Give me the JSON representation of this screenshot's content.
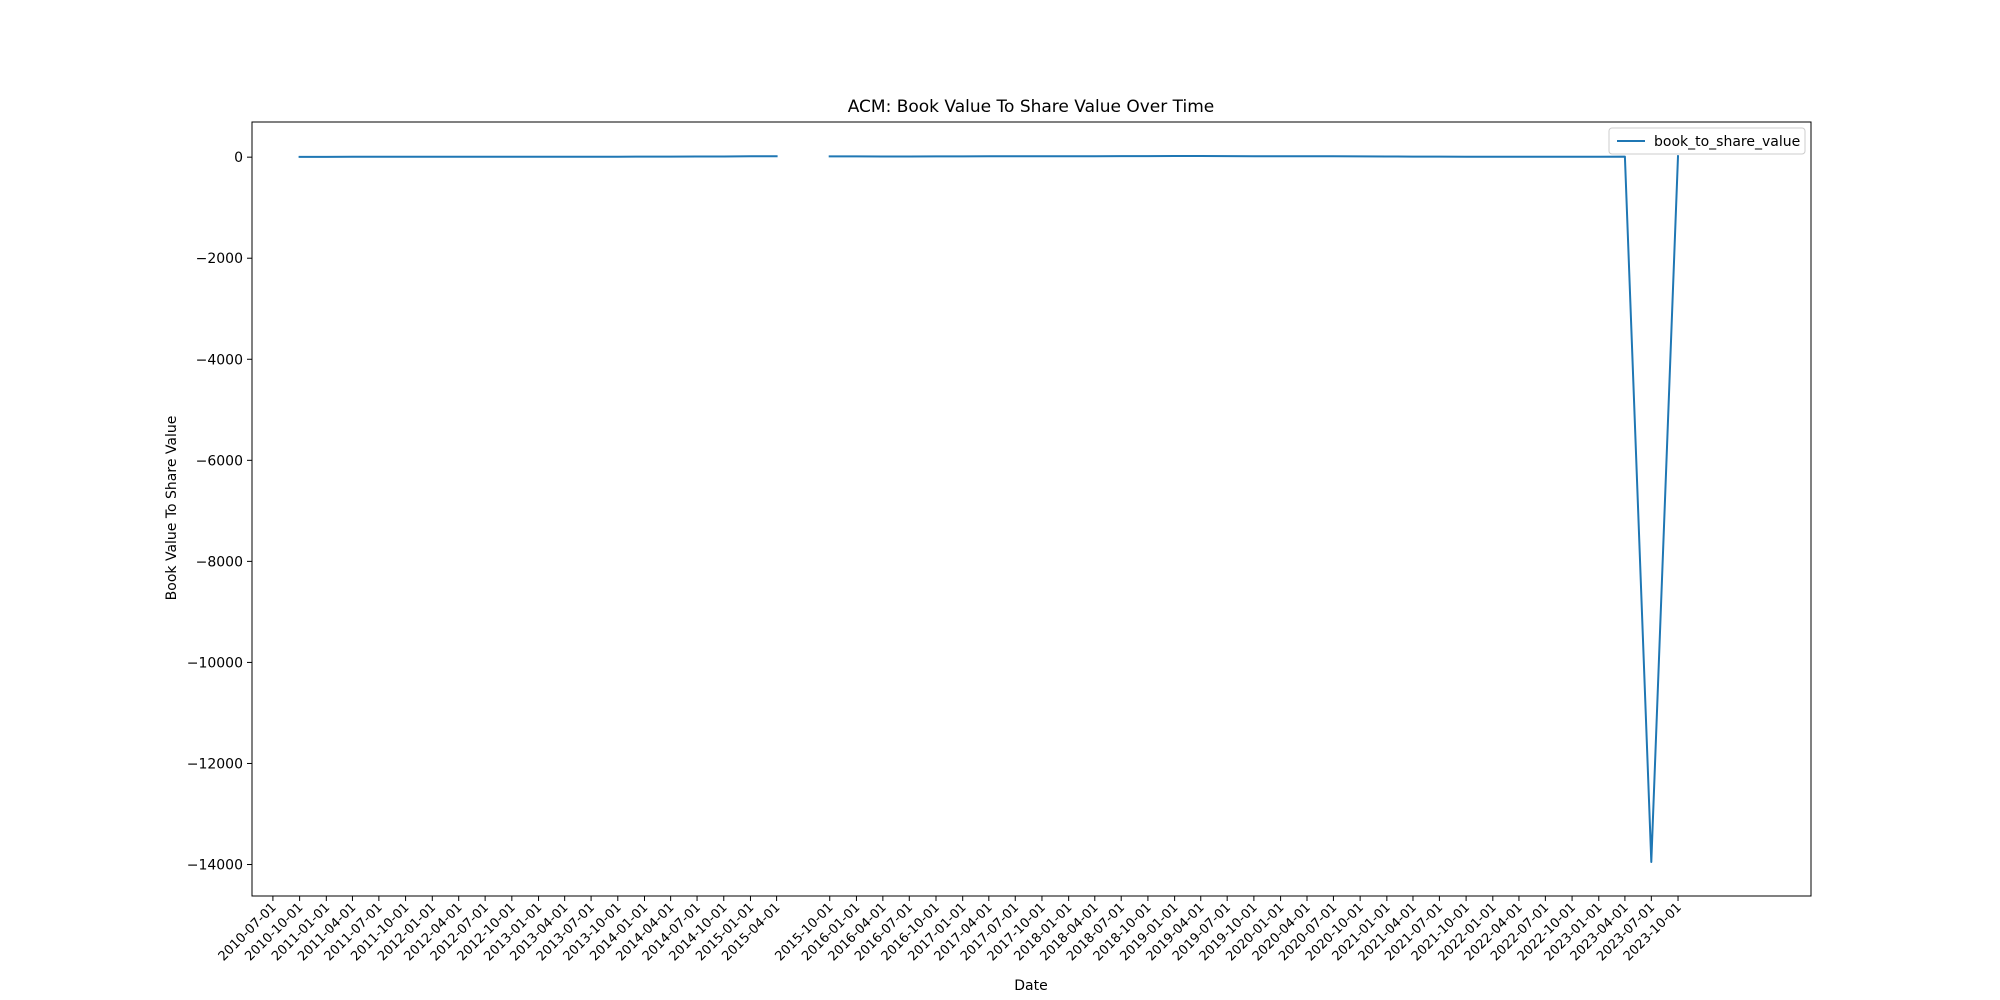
{
  "chart_data": {
    "type": "line",
    "title": "ACM: Book Value To Share Value Over Time",
    "xlabel": "Date",
    "ylabel": "Book Value To Share Value",
    "x": [
      "2010-07-01",
      "2010-10-01",
      "2011-01-01",
      "2011-04-01",
      "2011-07-01",
      "2011-10-01",
      "2012-01-01",
      "2012-04-01",
      "2012-07-01",
      "2012-10-01",
      "2013-01-01",
      "2013-04-01",
      "2013-07-01",
      "2013-10-01",
      "2014-01-01",
      "2014-04-01",
      "2014-07-01",
      "2014-10-01",
      "2015-01-01",
      "2015-04-01",
      "2015-10-01",
      "2016-01-01",
      "2016-04-01",
      "2016-07-01",
      "2016-10-01",
      "2017-01-01",
      "2017-04-01",
      "2017-07-01",
      "2017-10-01",
      "2018-01-01",
      "2018-04-01",
      "2018-07-01",
      "2018-10-01",
      "2019-01-01",
      "2019-04-01",
      "2019-07-01",
      "2019-10-01",
      "2020-01-01",
      "2020-04-01",
      "2020-07-01",
      "2020-10-01",
      "2021-01-01",
      "2021-04-01",
      "2021-07-01",
      "2021-10-01",
      "2022-01-01",
      "2022-04-01",
      "2022-07-01",
      "2022-10-01",
      "2023-01-01",
      "2023-04-01",
      "2023-07-01",
      "2023-10-01"
    ],
    "xlim": [
      "2010-04-20",
      "2025-01-01"
    ],
    "ylim": [
      -14623,
      696
    ],
    "yticks": [
      0,
      -2000,
      -4000,
      -6000,
      -8000,
      -10000,
      -12000,
      -14000
    ],
    "ytick_labels": [
      "0",
      "−2000",
      "−4000",
      "−6000",
      "−8000",
      "−10000",
      "−12000",
      "−14000"
    ],
    "grid": false,
    "legend_position": "upper right",
    "series": [
      {
        "name": "book_to_share_value",
        "color": "#1f77b4",
        "segments": [
          {
            "x": [
              "2010-10-01",
              "2011-01-01",
              "2011-04-01",
              "2011-07-01",
              "2011-10-01",
              "2012-01-01",
              "2012-04-01",
              "2012-07-01",
              "2012-10-01",
              "2013-01-01",
              "2013-04-01",
              "2013-07-01",
              "2013-10-01",
              "2014-01-01",
              "2014-04-01",
              "2014-07-01",
              "2014-10-01",
              "2015-01-01",
              "2015-04-01"
            ],
            "y": [
              5,
              6,
              7,
              7,
              8,
              9,
              9,
              10,
              9,
              9,
              9,
              10,
              10,
              11,
              12,
              13,
              14,
              18,
              17
            ]
          },
          {
            "x": [
              "2015-10-01",
              "2016-01-01",
              "2016-04-01",
              "2016-07-01",
              "2016-10-01",
              "2017-01-01",
              "2017-04-01",
              "2017-07-01",
              "2017-10-01",
              "2018-01-01",
              "2018-04-01",
              "2018-07-01",
              "2018-10-01",
              "2019-01-01",
              "2019-04-01",
              "2019-07-01",
              "2019-10-01",
              "2020-01-01",
              "2020-04-01",
              "2020-07-01",
              "2020-10-01",
              "2021-01-01",
              "2021-04-01",
              "2021-07-01",
              "2021-10-01",
              "2022-01-01",
              "2022-04-01",
              "2022-07-01",
              "2022-10-01",
              "2023-01-01",
              "2023-04-01",
              "2023-07-01",
              "2023-10-01"
            ],
            "y": [
              15,
              15,
              14,
              14,
              15,
              16,
              17,
              18,
              19,
              20,
              20,
              21,
              22,
              23,
              24,
              22,
              20,
              19,
              18,
              17,
              15,
              13,
              12,
              11,
              10,
              9,
              8,
              8,
              9,
              10,
              12,
              -13950,
              20
            ]
          }
        ]
      }
    ]
  }
}
